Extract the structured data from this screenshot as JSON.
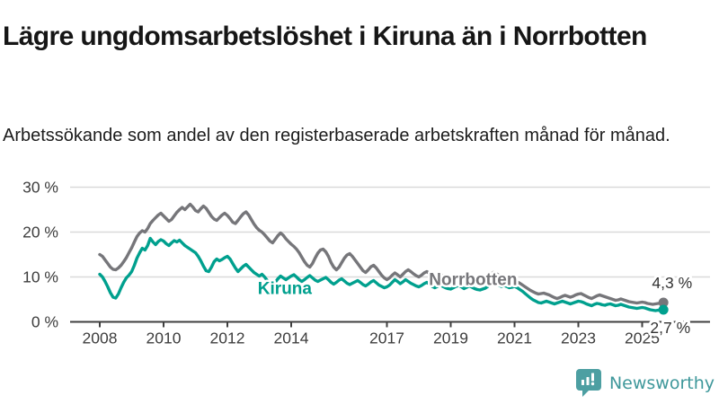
{
  "header": {
    "title": "Lägre ungdomsarbetslöshet i Kiruna än i Norrbotten",
    "subtitle": "Arbetssökande som andel av den registerbaserade arbetskraften månad för månad."
  },
  "footer": {
    "brand": "Newsworthy"
  },
  "colors": {
    "kiruna": "#00a08e",
    "norrbotten": "#76767a",
    "axis": "#3f3f3f",
    "grid": "#d9d9d9",
    "tick_text": "#3d3d3d",
    "end_label_text": "#333333",
    "brand_teal": "#4d9fa2",
    "halo": "#ffffff"
  },
  "chart_data": {
    "type": "line",
    "title": "Lägre ungdomsarbetslöshet i Kiruna än i Norrbotten",
    "subtitle": "Arbetssökande som andel av den registerbaserade arbetskraften månad för månad.",
    "x_unit": "decimal_year_monthly",
    "x_start": 2008.0,
    "xlim": [
      2008.0,
      2025.67
    ],
    "ylim": [
      0,
      32
    ],
    "grid": "horizontal",
    "legend_position": "inline-labels",
    "yticks": [
      {
        "value": 0,
        "label": "0 %"
      },
      {
        "value": 10,
        "label": "10 %"
      },
      {
        "value": 20,
        "label": "20 %"
      },
      {
        "value": 30,
        "label": "30 %"
      }
    ],
    "xticks": [
      {
        "value": 2008,
        "label": "2008"
      },
      {
        "value": 2010,
        "label": "2010"
      },
      {
        "value": 2012,
        "label": "2012"
      },
      {
        "value": 2014,
        "label": "2014"
      },
      {
        "value": 2017,
        "label": "2017"
      },
      {
        "value": 2019,
        "label": "2019"
      },
      {
        "value": 2021,
        "label": "2021"
      },
      {
        "value": 2023,
        "label": "2023"
      },
      {
        "value": 2025,
        "label": "2025"
      }
    ],
    "annotations": [
      {
        "text": "Kiruna",
        "x": 2013.8,
        "y": 6.2,
        "color": "#00a08e"
      },
      {
        "text": "Norrbotten",
        "x": 2019.7,
        "y": 8.2,
        "color": "#76767a"
      }
    ],
    "series": [
      {
        "name": "Norrbotten",
        "color": "#76767a",
        "end_label": "4,3 %",
        "latest_value": 4.3,
        "values": [
          15.0,
          14.6,
          13.8,
          13.0,
          12.2,
          11.7,
          11.6,
          12.0,
          12.6,
          13.4,
          14.3,
          15.4,
          16.5,
          17.8,
          19.0,
          19.8,
          20.3,
          20.0,
          20.8,
          21.9,
          22.6,
          23.2,
          23.8,
          24.2,
          23.6,
          23.0,
          22.4,
          22.8,
          23.6,
          24.4,
          25.0,
          25.5,
          25.0,
          25.6,
          26.2,
          25.6,
          24.8,
          24.5,
          25.2,
          25.8,
          25.3,
          24.4,
          23.5,
          22.9,
          22.6,
          23.2,
          23.8,
          24.2,
          23.7,
          23.0,
          22.2,
          21.9,
          22.6,
          23.4,
          24.1,
          24.5,
          23.8,
          22.8,
          21.8,
          21.0,
          20.4,
          20.0,
          19.4,
          18.7,
          18.0,
          17.6,
          18.4,
          19.2,
          19.8,
          19.3,
          18.5,
          17.9,
          17.3,
          16.8,
          16.2,
          15.4,
          14.4,
          13.4,
          12.6,
          12.2,
          13.0,
          14.2,
          15.3,
          16.0,
          16.2,
          15.6,
          14.6,
          13.2,
          12.2,
          11.6,
          12.2,
          13.2,
          14.2,
          14.9,
          15.2,
          14.6,
          13.8,
          13.0,
          12.2,
          11.4,
          11.0,
          11.6,
          12.3,
          12.6,
          12.0,
          11.2,
          10.4,
          9.8,
          9.4,
          9.8,
          10.4,
          10.9,
          10.5,
          10.0,
          10.6,
          11.2,
          11.6,
          11.2,
          10.7,
          10.3,
          10.0,
          10.4,
          10.9,
          11.2,
          10.8,
          10.2,
          9.8,
          10.2,
          10.6,
          10.2,
          9.8,
          9.5,
          9.3,
          9.6,
          10.0,
          10.3,
          9.9,
          9.4,
          9.8,
          10.2,
          9.8,
          9.4,
          9.1,
          9.0,
          9.2,
          9.4,
          9.8,
          10.6,
          11.0,
          10.8,
          10.4,
          10.0,
          10.3,
          10.0,
          9.6,
          9.4,
          9.2,
          8.9,
          8.6,
          8.2,
          7.8,
          7.4,
          7.0,
          6.7,
          6.4,
          6.2,
          6.3,
          6.4,
          6.2,
          6.0,
          5.7,
          5.4,
          5.2,
          5.4,
          5.7,
          5.9,
          5.7,
          5.5,
          5.7,
          6.0,
          6.2,
          6.3,
          6.0,
          5.7,
          5.4,
          5.2,
          5.5,
          5.8,
          6.0,
          5.8,
          5.6,
          5.4,
          5.2,
          5.0,
          4.8,
          4.9,
          5.1,
          4.9,
          4.7,
          4.5,
          4.4,
          4.3,
          4.2,
          4.3,
          4.4,
          4.3,
          4.1,
          4.0,
          3.9,
          4.0,
          4.1,
          4.2,
          4.3
        ]
      },
      {
        "name": "Kiruna",
        "color": "#00a08e",
        "end_label": "2,7 %",
        "latest_value": 2.7,
        "values": [
          10.6,
          10.0,
          9.0,
          7.8,
          6.5,
          5.5,
          5.3,
          6.2,
          7.6,
          8.8,
          9.8,
          10.4,
          11.2,
          12.6,
          14.2,
          15.4,
          16.4,
          16.0,
          17.0,
          18.6,
          17.8,
          17.2,
          17.9,
          18.3,
          18.0,
          17.4,
          17.0,
          17.6,
          18.1,
          17.8,
          18.2,
          17.6,
          17.0,
          16.6,
          16.2,
          15.8,
          15.4,
          14.6,
          13.6,
          12.4,
          11.4,
          11.2,
          12.2,
          13.4,
          14.0,
          13.6,
          13.9,
          14.3,
          14.6,
          14.0,
          13.0,
          12.0,
          11.2,
          11.8,
          12.4,
          12.8,
          12.2,
          11.6,
          11.0,
          10.6,
          10.2,
          10.6,
          10.0,
          9.2,
          8.5,
          8.2,
          8.8,
          9.6,
          10.2,
          9.8,
          9.4,
          9.8,
          10.2,
          10.5,
          10.0,
          9.4,
          9.0,
          9.4,
          9.9,
          10.3,
          9.8,
          9.3,
          9.0,
          9.3,
          9.6,
          9.9,
          9.4,
          8.8,
          8.4,
          8.8,
          9.3,
          9.6,
          9.1,
          8.6,
          8.3,
          8.6,
          8.9,
          9.2,
          8.8,
          8.3,
          8.0,
          8.4,
          8.9,
          9.2,
          8.7,
          8.2,
          7.9,
          7.6,
          7.8,
          8.2,
          8.8,
          9.4,
          9.0,
          8.5,
          8.9,
          9.4,
          9.0,
          8.6,
          8.3,
          8.0,
          7.8,
          8.1,
          8.5,
          8.8,
          8.4,
          7.9,
          7.6,
          7.9,
          8.2,
          7.9,
          7.6,
          7.4,
          7.3,
          7.6,
          7.9,
          8.1,
          7.8,
          7.4,
          7.7,
          8.0,
          7.7,
          7.4,
          7.2,
          7.1,
          7.3,
          7.5,
          7.9,
          8.4,
          8.7,
          8.5,
          8.2,
          7.9,
          8.1,
          7.9,
          7.6,
          7.7,
          7.9,
          7.6,
          7.2,
          6.8,
          6.3,
          5.8,
          5.3,
          4.9,
          4.6,
          4.3,
          4.2,
          4.4,
          4.6,
          4.4,
          4.2,
          4.0,
          4.2,
          4.4,
          4.6,
          4.4,
          4.2,
          4.0,
          4.2,
          4.4,
          4.6,
          4.5,
          4.3,
          4.0,
          3.8,
          3.6,
          3.9,
          4.1,
          4.0,
          3.8,
          3.7,
          3.9,
          4.0,
          3.8,
          3.6,
          3.7,
          3.9,
          3.7,
          3.5,
          3.3,
          3.2,
          3.1,
          3.0,
          3.1,
          3.2,
          3.1,
          2.9,
          2.7,
          2.6,
          2.5,
          2.6,
          2.6,
          2.7
        ]
      }
    ]
  }
}
